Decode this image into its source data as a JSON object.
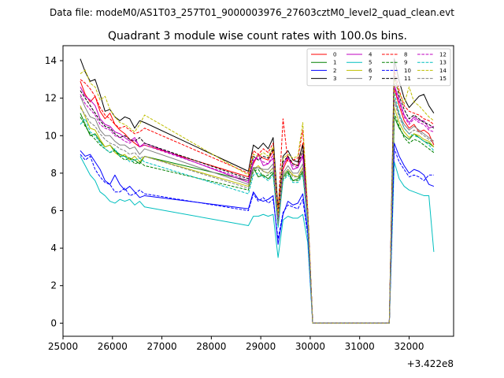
{
  "chart_data": {
    "type": "line",
    "suptitle": "Data file: modeM0/AS1T03_257T01_9000003976_27603cztM0_level2_quad_clean.evt",
    "title": "Quadrant 3 module wise count rates with 100.0s bins.",
    "xlabel": "",
    "ylabel": "",
    "x_offset_label": "+3.422e8",
    "xlim": [
      25000,
      32900
    ],
    "ylim": [
      -0.7,
      14.8
    ],
    "xticks": [
      25000,
      26000,
      27000,
      28000,
      29000,
      30000,
      31000,
      32000
    ],
    "yticks": [
      0,
      2,
      4,
      6,
      8,
      10,
      12,
      14
    ],
    "segments": [
      {
        "start": 25350,
        "step": 100,
        "count": 14
      },
      {
        "start": 28750,
        "step": 100,
        "count": 15
      },
      {
        "start": 31500,
        "step": 100,
        "count": 11
      }
    ],
    "legend": {
      "location": "top-right",
      "columns": 4
    },
    "series": [
      {
        "name": "0",
        "color": "#ff0000",
        "dashed": false,
        "seg": [
          [
            12.9,
            12.2,
            11.8,
            12.1,
            11.3,
            10.9,
            11.2,
            10.6,
            10.3,
            10.1,
            9.8,
            9.6,
            9.4,
            9.5
          ],
          [
            7.8,
            8.5,
            9.0,
            8.8,
            8.7,
            9.2,
            5.6,
            8.2,
            8.8,
            8.5,
            8.4,
            9.6,
            5.8,
            0.0,
            0.0
          ],
          [
            0.0,
            0.0,
            12.5,
            11.6,
            10.8,
            10.4,
            10.6,
            10.2,
            10.3,
            10.1,
            9.5
          ]
        ]
      },
      {
        "name": "1",
        "color": "#008000",
        "dashed": false,
        "seg": [
          [
            11.2,
            10.6,
            10.0,
            10.1,
            9.7,
            9.4,
            9.5,
            9.2,
            9.0,
            8.9,
            8.8,
            8.7,
            8.5,
            8.9
          ],
          [
            7.6,
            8.3,
            7.8,
            7.9,
            7.7,
            8.0,
            5.4,
            7.8,
            8.1,
            7.6,
            7.7,
            8.1,
            5.6,
            0.0,
            0.0
          ],
          [
            0.0,
            0.0,
            11.0,
            10.4,
            10.0,
            9.8,
            10.1,
            9.9,
            9.7,
            9.6,
            9.4
          ]
        ]
      },
      {
        "name": "2",
        "color": "#0000ff",
        "dashed": false,
        "seg": [
          [
            9.2,
            8.9,
            9.0,
            8.6,
            8.2,
            7.6,
            7.4,
            7.9,
            7.4,
            7.1,
            7.3,
            7.0,
            6.7,
            6.8
          ],
          [
            6.1,
            7.0,
            6.6,
            6.5,
            6.6,
            6.8,
            4.2,
            5.8,
            6.5,
            6.3,
            6.4,
            6.9,
            4.9,
            0.0,
            0.0
          ],
          [
            0.0,
            0.0,
            9.6,
            8.9,
            8.4,
            8.0,
            8.2,
            8.1,
            7.9,
            7.4,
            7.3
          ]
        ]
      },
      {
        "name": "3",
        "color": "#000000",
        "dashed": false,
        "seg": [
          [
            14.1,
            13.4,
            12.9,
            13.0,
            12.2,
            11.3,
            11.4,
            11.0,
            10.8,
            11.0,
            10.9,
            10.4,
            10.8,
            10.7
          ],
          [
            8.1,
            9.5,
            9.3,
            9.6,
            9.3,
            9.9,
            6.1,
            8.9,
            9.2,
            8.7,
            8.6,
            9.5,
            6.0,
            0.0,
            0.0
          ],
          [
            0.0,
            0.0,
            14.1,
            12.9,
            12.0,
            11.5,
            11.8,
            12.1,
            12.2,
            11.6,
            11.2
          ]
        ]
      },
      {
        "name": "4",
        "color": "#bf00bf",
        "dashed": false,
        "seg": [
          [
            12.6,
            12.1,
            11.9,
            11.6,
            10.9,
            10.6,
            10.5,
            10.2,
            10.1,
            9.9,
            9.7,
            9.9,
            9.4,
            9.6
          ],
          [
            7.5,
            8.6,
            9.0,
            8.4,
            8.5,
            8.8,
            5.7,
            8.4,
            8.9,
            8.2,
            8.3,
            8.9,
            5.7,
            0.0,
            0.0
          ],
          [
            0.0,
            0.0,
            12.7,
            11.9,
            11.1,
            10.7,
            11.0,
            10.8,
            10.8,
            10.4,
            10.5
          ]
        ]
      },
      {
        "name": "5",
        "color": "#00bfbf",
        "dashed": false,
        "seg": [
          [
            8.9,
            8.4,
            7.9,
            7.6,
            7.0,
            6.8,
            6.5,
            6.4,
            6.6,
            6.5,
            6.6,
            6.3,
            6.5,
            6.2
          ],
          [
            5.2,
            5.7,
            5.7,
            5.8,
            5.7,
            5.8,
            3.5,
            5.5,
            5.7,
            5.6,
            5.6,
            5.8,
            4.3,
            0.0,
            0.0
          ],
          [
            0.0,
            0.0,
            8.6,
            7.7,
            7.3,
            7.1,
            7.0,
            6.9,
            6.8,
            6.8,
            3.8
          ]
        ]
      },
      {
        "name": "6",
        "color": "#bfbf00",
        "dashed": false,
        "seg": [
          [
            11.6,
            11.0,
            10.4,
            10.3,
            9.8,
            9.4,
            9.5,
            9.1,
            8.9,
            9.0,
            8.7,
            8.9,
            8.6,
            8.9
          ],
          [
            7.3,
            8.2,
            8.4,
            8.1,
            8.0,
            8.3,
            5.3,
            7.9,
            8.2,
            7.9,
            7.8,
            8.3,
            5.5,
            0.0,
            0.0
          ],
          [
            0.0,
            0.0,
            11.5,
            10.7,
            10.2,
            9.9,
            10.1,
            10.0,
            9.8,
            9.7,
            9.4
          ]
        ]
      },
      {
        "name": "7",
        "color": "#808080",
        "dashed": false,
        "seg": [
          [
            12.1,
            11.5,
            11.0,
            10.9,
            10.3,
            10.0,
            10.0,
            9.7,
            9.5,
            9.5,
            9.3,
            9.4,
            9.0,
            9.3
          ],
          [
            7.4,
            8.3,
            8.3,
            8.2,
            8.2,
            8.5,
            5.4,
            8.0,
            8.4,
            8.0,
            8.0,
            8.5,
            5.6,
            0.0,
            0.0
          ],
          [
            0.0,
            0.0,
            12.0,
            11.1,
            10.6,
            10.3,
            10.5,
            10.3,
            10.1,
            9.9,
            9.7
          ]
        ]
      },
      {
        "name": "8",
        "color": "#ff0000",
        "dashed": true,
        "seg": [
          [
            13.0,
            12.8,
            12.5,
            12.1,
            11.5,
            11.1,
            10.9,
            10.6,
            10.4,
            10.5,
            10.3,
            10.1,
            10.2,
            10.4
          ],
          [
            8.0,
            9.2,
            9.0,
            9.3,
            9.1,
            9.6,
            5.9,
            10.9,
            8.6,
            8.7,
            8.8,
            10.3,
            6.1,
            0.0,
            0.0
          ],
          [
            0.0,
            0.0,
            13.5,
            12.4,
            11.6,
            11.3,
            11.2,
            11.1,
            10.9,
            10.8,
            10.6
          ]
        ]
      },
      {
        "name": "9",
        "color": "#008000",
        "dashed": true,
        "seg": [
          [
            11.0,
            10.5,
            10.1,
            9.8,
            9.5,
            9.3,
            9.1,
            9.2,
            8.9,
            8.7,
            8.8,
            8.5,
            8.6,
            8.4
          ],
          [
            7.1,
            8.1,
            8.2,
            7.8,
            7.9,
            8.1,
            5.2,
            7.7,
            8.0,
            7.6,
            7.6,
            8.0,
            5.4,
            0.0,
            0.0
          ],
          [
            0.0,
            0.0,
            11.2,
            10.5,
            9.9,
            9.6,
            9.8,
            9.7,
            9.5,
            9.3,
            9.1
          ]
        ]
      },
      {
        "name": "10",
        "color": "#0000ff",
        "dashed": true,
        "seg": [
          [
            9.0,
            8.7,
            8.9,
            8.2,
            7.8,
            7.5,
            7.4,
            7.0,
            7.0,
            7.2,
            6.8,
            6.9,
            7.1,
            6.9
          ],
          [
            6.0,
            6.9,
            6.5,
            6.7,
            6.4,
            6.6,
            4.5,
            5.9,
            6.3,
            6.2,
            6.1,
            6.6,
            4.7,
            0.0,
            0.0
          ],
          [
            0.0,
            0.0,
            9.3,
            8.6,
            8.2,
            7.8,
            7.9,
            7.8,
            7.6,
            7.9,
            7.9
          ]
        ]
      },
      {
        "name": "11",
        "color": "#000000",
        "dashed": true,
        "seg": [
          [
            12.4,
            12.0,
            11.6,
            11.2,
            10.8,
            10.5,
            10.4,
            10.1,
            9.9,
            10.0,
            9.8,
            9.7,
            9.9,
            9.6
          ],
          [
            7.7,
            8.9,
            8.7,
            8.9,
            8.8,
            9.3,
            5.8,
            8.6,
            8.9,
            8.5,
            8.4,
            9.2,
            5.9,
            0.0,
            0.0
          ],
          [
            0.0,
            0.0,
            13.2,
            12.1,
            11.4,
            10.9,
            11.1,
            10.9,
            10.7,
            10.6,
            10.4
          ]
        ]
      },
      {
        "name": "12",
        "color": "#bf00bf",
        "dashed": true,
        "seg": [
          [
            12.2,
            11.7,
            11.4,
            11.1,
            10.6,
            10.4,
            10.3,
            10.0,
            9.9,
            9.7,
            9.6,
            9.8,
            9.4,
            9.5
          ],
          [
            7.6,
            8.7,
            8.8,
            8.6,
            8.5,
            9.0,
            5.6,
            8.5,
            8.8,
            8.4,
            8.3,
            9.0,
            5.8,
            0.0,
            0.0
          ],
          [
            0.0,
            0.0,
            12.6,
            11.8,
            11.0,
            10.6,
            10.9,
            10.7,
            10.6,
            10.3,
            10.2
          ]
        ]
      },
      {
        "name": "13",
        "color": "#00bfbf",
        "dashed": true,
        "seg": [
          [
            10.6,
            10.9,
            10.2,
            10.0,
            9.6,
            9.3,
            9.1,
            9.3,
            8.9,
            8.9,
            8.6,
            8.7,
            8.8,
            8.6
          ],
          [
            6.9,
            7.9,
            8.0,
            7.8,
            7.6,
            7.9,
            5.1,
            7.6,
            7.9,
            7.5,
            7.5,
            7.9,
            5.3,
            0.0,
            0.0
          ],
          [
            0.0,
            0.0,
            12.3,
            11.2,
            10.4,
            10.1,
            10.0,
            9.9,
            9.7,
            9.5,
            9.2
          ]
        ]
      },
      {
        "name": "14",
        "color": "#bfbf00",
        "dashed": true,
        "seg": [
          [
            13.3,
            13.5,
            12.8,
            12.6,
            11.9,
            12.1,
            11.4,
            11.0,
            10.7,
            10.6,
            10.4,
            10.2,
            10.6,
            11.1
          ],
          [
            7.9,
            9.0,
            8.9,
            9.1,
            8.9,
            9.4,
            5.8,
            8.8,
            9.0,
            8.8,
            8.9,
            10.7,
            6.0,
            0.0,
            0.0
          ],
          [
            0.0,
            0.0,
            13.0,
            12.3,
            11.7,
            12.6,
            11.8,
            11.6,
            11.3,
            11.0,
            10.8
          ]
        ]
      },
      {
        "name": "15",
        "color": "#808080",
        "dashed": true,
        "seg": [
          [
            11.5,
            11.1,
            10.7,
            10.5,
            10.1,
            9.8,
            9.6,
            9.5,
            9.3,
            9.2,
            9.0,
            9.1,
            8.8,
            8.9
          ],
          [
            7.2,
            8.2,
            8.3,
            8.1,
            8.0,
            8.3,
            5.3,
            7.9,
            8.2,
            7.8,
            7.8,
            8.2,
            5.5,
            0.0,
            0.0
          ],
          [
            0.0,
            0.0,
            11.8,
            11.0,
            10.4,
            10.1,
            10.3,
            10.2,
            10.0,
            9.8,
            9.6
          ]
        ]
      }
    ]
  }
}
